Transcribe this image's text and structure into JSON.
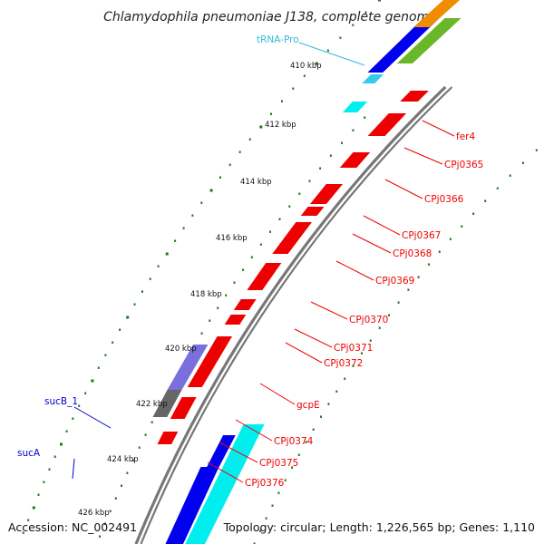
{
  "title": "Chlamydophila pneumoniae J138, complete genome",
  "footer": {
    "accession": "Accession: NC_002491",
    "topology": "Topology: circular; Length: 1,226,565 bp; Genes: 1,110"
  },
  "colors": {
    "forward_gene": "#0000ee",
    "reverse_gene": "#ee0000",
    "trna": "#33ccee",
    "cyan_block": "#00eeee",
    "purple_block": "#7a6fdc",
    "gray_block": "#666666",
    "backbone": "#777777",
    "tick_mark": "#1a7a1a",
    "forward_label": "#0000cc",
    "reverse_label": "#ee0000",
    "trna_label": "#33bbdd"
  },
  "scale_labels": [
    "410 kbp",
    "412 kbp",
    "414 kbp",
    "416 kbp",
    "418 kbp",
    "420 kbp",
    "422 kbp",
    "424 kbp",
    "426 kbp"
  ],
  "reverse_labels": [
    "fer4",
    "CPj0365",
    "CPj0366",
    "CPj0367",
    "CPj0368",
    "CPj0369",
    "CPj0370",
    "CPj0371",
    "CPj0372",
    "gcpE",
    "CPj0374",
    "CPj0375",
    "CPj0376"
  ],
  "forward_labels": [
    "sucB_1",
    "sucA"
  ],
  "trna_labels": [
    "tRNA-Pro"
  ]
}
